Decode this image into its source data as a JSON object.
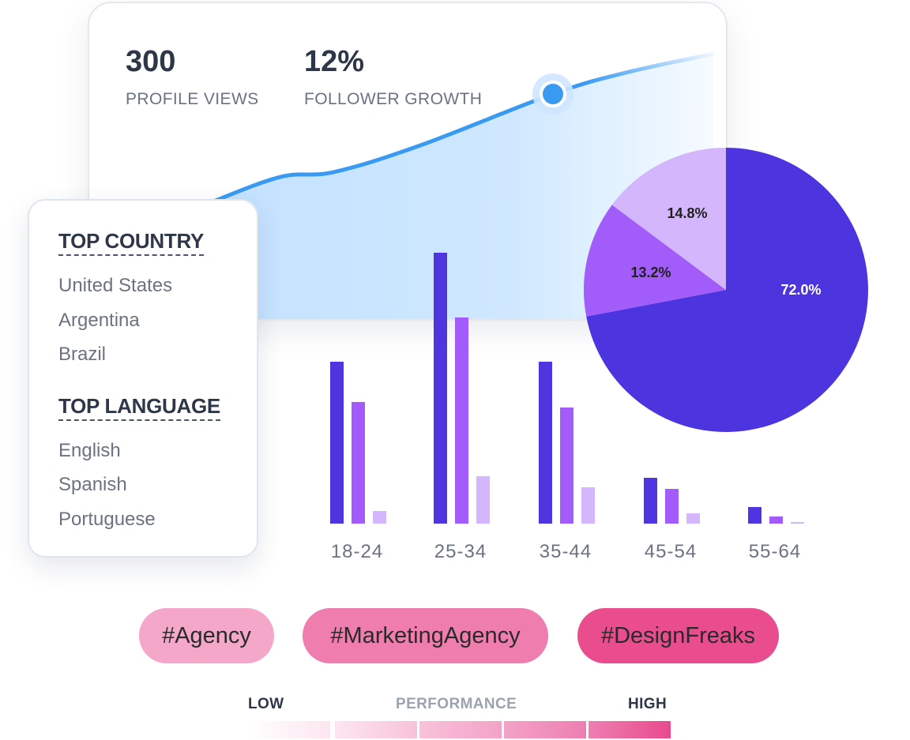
{
  "stats": [
    {
      "value": "300",
      "label": "PROFILE VIEWS"
    },
    {
      "value": "12%",
      "label": "FOLLOWER GROWTH"
    }
  ],
  "top_country": {
    "title": "TOP COUNTRY",
    "items": [
      "United States",
      "Argentina",
      "Brazil"
    ]
  },
  "top_language": {
    "title": "TOP LANGUAGE",
    "items": [
      "English",
      "Spanish",
      "Portuguese"
    ]
  },
  "chart_data": [
    {
      "type": "line",
      "x": [
        0,
        1,
        2,
        3,
        4,
        5,
        6
      ],
      "values": [
        0,
        1.1,
        1.3,
        2.3,
        4.2,
        5.0,
        5.7
      ],
      "highlight_index": 4,
      "colors": {
        "line": "#3a9af2",
        "fill": "#bfe0ff",
        "marker": "#3a9af2"
      }
    },
    {
      "type": "bar",
      "categories": [
        "18-24",
        "25-34",
        "35-44",
        "45-54",
        "55-64"
      ],
      "series": [
        {
          "values": [
            205,
            343,
            205,
            58,
            21
          ],
          "color": "#4f35df"
        },
        {
          "values": [
            154,
            261,
            147,
            44,
            9
          ],
          "color": "#a35bfb"
        },
        {
          "values": [
            16,
            60,
            46,
            13,
            2
          ],
          "color": "#d3b6fc"
        }
      ],
      "ylim": [
        0,
        360
      ]
    },
    {
      "type": "pie",
      "slices": [
        {
          "label": "72.0%",
          "value": 72.0,
          "color": "#4c35df",
          "text_color": "#ffffff"
        },
        {
          "label": "13.2%",
          "value": 13.2,
          "color": "#a25cf9",
          "text_color": "#1f1f1f"
        },
        {
          "label": "14.8%",
          "value": 14.8,
          "color": "#d3b6fc",
          "text_color": "#1f1f1f"
        }
      ]
    }
  ],
  "tags": [
    {
      "label": "#Agency",
      "color": "#f4a7c8"
    },
    {
      "label": "#MarketingAgency",
      "color": "#ef7dad"
    },
    {
      "label": "#DesignFreaks",
      "color": "#ea4d8d"
    }
  ],
  "performance": {
    "low_label": "LOW",
    "title": "PERFORMANCE",
    "high_label": "HIGH",
    "colors": [
      "#fde6f0",
      "#f8c2da",
      "#f3a2c7",
      "#ee7eb1",
      "#e94a8d"
    ]
  }
}
